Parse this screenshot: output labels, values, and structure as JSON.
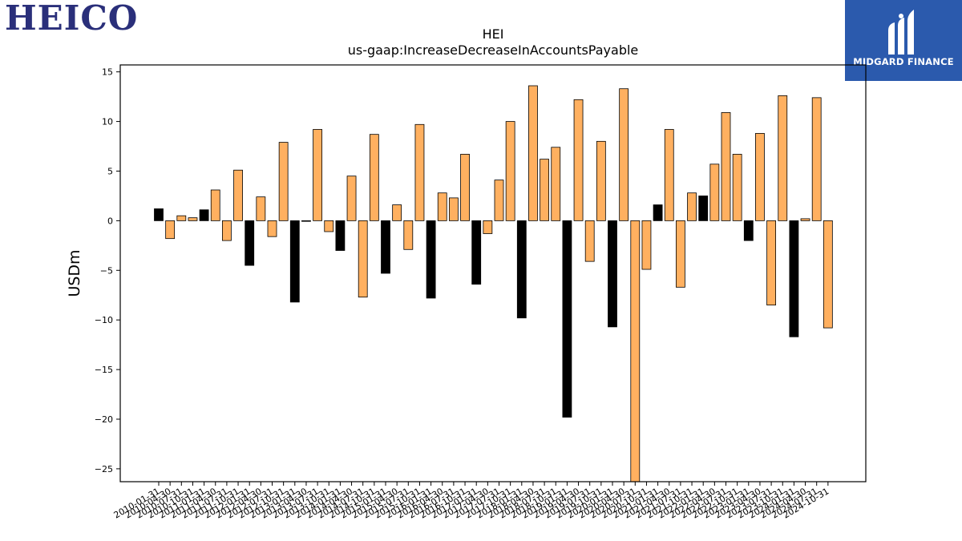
{
  "logos": {
    "heico": "HEICO",
    "midgard": "MIDGARD FINANCE"
  },
  "chart_data": {
    "type": "bar",
    "title": "HEI",
    "subtitle": "us-gaap:IncreaseDecreaseInAccountsPayable",
    "xlabel": "",
    "ylabel": "USDm",
    "ylim": [
      -26.3,
      15.7
    ],
    "yticks": [
      15,
      10,
      5,
      0,
      -5,
      -10,
      -15,
      -20,
      -25
    ],
    "grid": false,
    "colors": {
      "annual": "#000000",
      "quarter": "#ffb060"
    },
    "categories": [
      "2010-01-31",
      "2010-04-30",
      "2010-07-31",
      "2010-10-31",
      "2011-01-31",
      "2011-04-30",
      "2011-07-31",
      "2011-10-31",
      "2012-01-31",
      "2012-04-30",
      "2012-07-31",
      "2012-10-31",
      "2013-01-31",
      "2013-04-30",
      "2013-07-31",
      "2013-10-31",
      "2014-01-31",
      "2014-04-30",
      "2014-07-31",
      "2014-10-31",
      "2015-01-31",
      "2015-04-30",
      "2015-07-31",
      "2015-10-31",
      "2016-01-31",
      "2016-04-30",
      "2016-07-31",
      "2016-10-31",
      "2017-01-31",
      "2017-04-30",
      "2017-07-31",
      "2017-10-31",
      "2018-01-31",
      "2018-04-30",
      "2018-07-31",
      "2018-10-31",
      "2019-01-31",
      "2019-04-30",
      "2019-07-31",
      "2019-10-31",
      "2020-01-31",
      "2020-04-30",
      "2020-07-31",
      "2020-10-31",
      "2021-01-31",
      "2021-04-30",
      "2021-07-31",
      "2021-10-31",
      "2022-01-31",
      "2022-04-30",
      "2022-07-31",
      "2022-10-31",
      "2023-01-31",
      "2023-04-30",
      "2023-07-31",
      "2023-10-31",
      "2024-01-31",
      "2024-04-30",
      "2024-07-31",
      "2024-10-31"
    ],
    "values": [
      1.2,
      -1.8,
      0.5,
      0.3,
      1.1,
      3.1,
      -2.0,
      5.1,
      -4.5,
      2.4,
      -1.6,
      7.9,
      -8.2,
      0.0,
      9.2,
      -1.1,
      -3.0,
      4.5,
      -7.7,
      8.7,
      -5.3,
      1.6,
      -2.9,
      9.7,
      -7.8,
      2.8,
      2.3,
      6.7,
      -6.4,
      -1.3,
      4.1,
      10.0,
      -9.8,
      13.6,
      6.2,
      7.4,
      -19.8,
      12.2,
      -4.1,
      8.0,
      -10.7,
      13.3,
      -26.3,
      -4.9,
      1.6,
      9.2,
      -6.7,
      2.8,
      2.5,
      5.7,
      10.9,
      6.7,
      -2.0,
      8.8,
      -8.5,
      12.6,
      -11.7,
      0.2,
      12.4,
      -10.8
    ],
    "annual_flags": [
      1,
      0,
      0,
      0,
      1,
      0,
      0,
      0,
      1,
      0,
      0,
      0,
      1,
      0,
      0,
      0,
      1,
      0,
      0,
      0,
      1,
      0,
      0,
      0,
      1,
      0,
      0,
      0,
      1,
      0,
      0,
      0,
      1,
      0,
      0,
      0,
      1,
      0,
      0,
      0,
      1,
      0,
      0,
      0,
      1,
      0,
      0,
      0,
      1,
      0,
      0,
      0,
      1,
      0,
      0,
      0,
      1,
      0,
      0,
      0
    ]
  }
}
